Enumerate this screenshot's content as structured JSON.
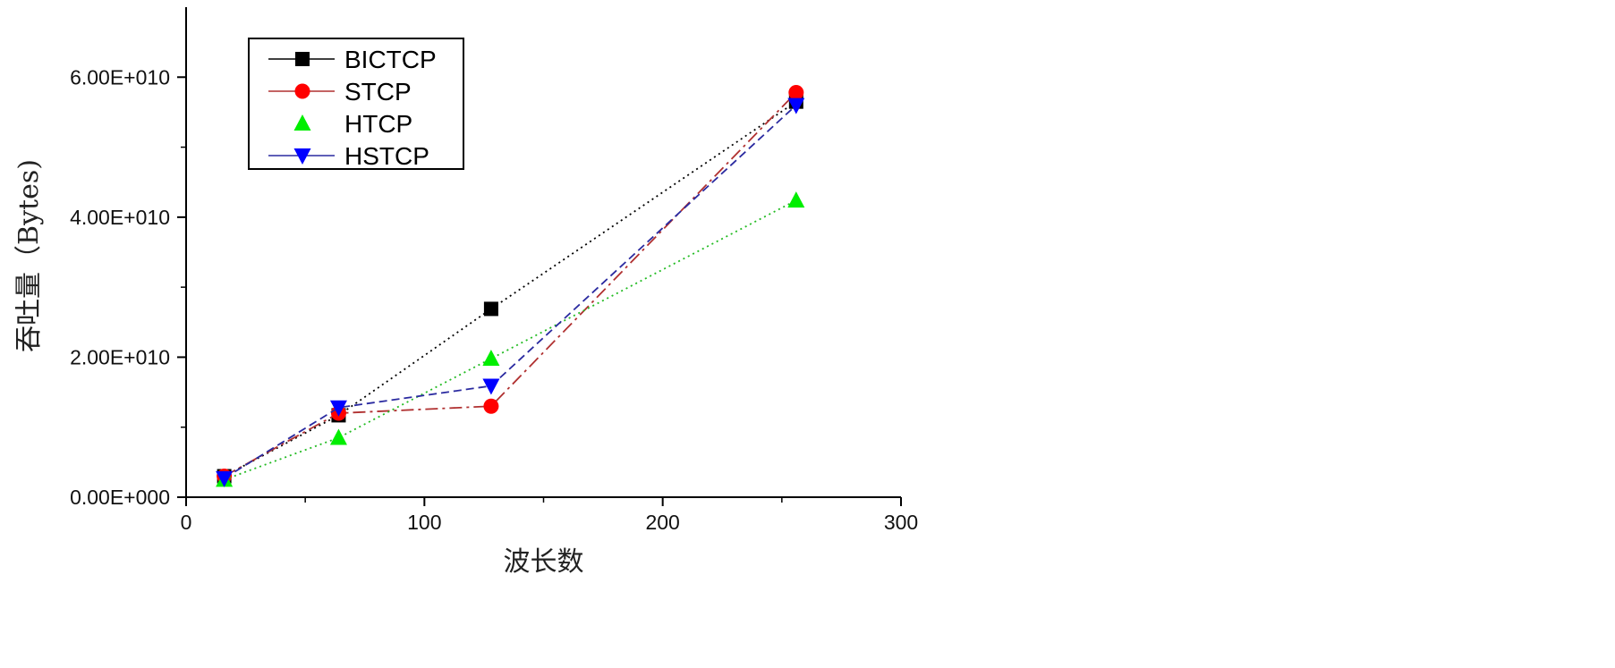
{
  "chart_data": {
    "type": "line",
    "xlabel": "波长数",
    "ylabel": "吞吐量（Bytes)",
    "xlim": [
      0,
      300
    ],
    "ylim": [
      0,
      70000000000
    ],
    "x_ticks": [
      0,
      100,
      200,
      300
    ],
    "x_tick_labels": [
      "0",
      "100",
      "200",
      "300"
    ],
    "y_ticks": [
      0,
      20000000000,
      40000000000,
      60000000000
    ],
    "y_tick_labels": [
      "0.00E+000",
      "2.00E+010",
      "4.00E+010",
      "6.00E+010"
    ],
    "grid": false,
    "legend_position": "top-left",
    "series": [
      {
        "name": "BICTCP",
        "color": "#000000",
        "marker": "square",
        "line_style": "dotted",
        "x": [
          16,
          64,
          128,
          256
        ],
        "y": [
          3000000000,
          11700000000,
          26900000000,
          56500000000
        ]
      },
      {
        "name": "STCP",
        "color": "#ff0000",
        "line_color": "#b03030",
        "marker": "circle",
        "line_style": "dashdot",
        "x": [
          16,
          64,
          128,
          256
        ],
        "y": [
          3000000000,
          12000000000,
          13000000000,
          57800000000
        ]
      },
      {
        "name": "HTCP",
        "color": "#00ee00",
        "line_color": "#22bb22",
        "marker": "triangle-up",
        "line_style": "dotted",
        "x": [
          16,
          64,
          128,
          256
        ],
        "y": [
          2500000000,
          8500000000,
          19800000000,
          42400000000
        ]
      },
      {
        "name": "HSTCP",
        "color": "#0000ff",
        "line_color": "#2a2aa0",
        "marker": "triangle-down",
        "line_style": "dashed",
        "x": [
          16,
          64,
          128,
          256
        ],
        "y": [
          2700000000,
          12800000000,
          15900000000,
          56000000000
        ]
      }
    ]
  }
}
